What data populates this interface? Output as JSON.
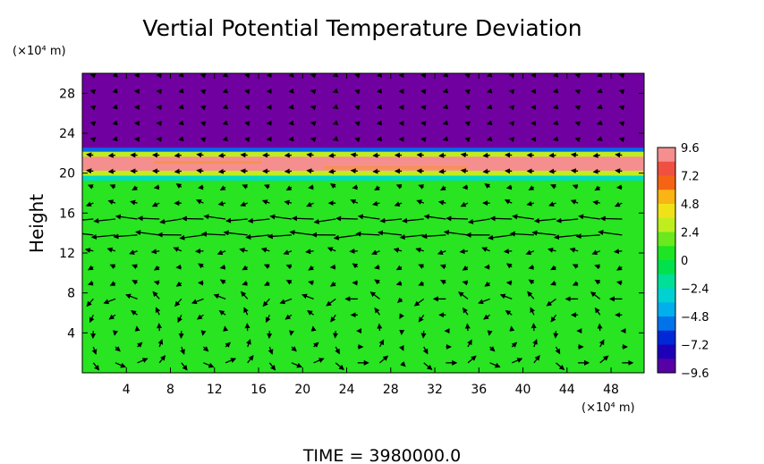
{
  "chart_data": {
    "type": "heatmap",
    "title": "Vertial Potential Temperature Deviation",
    "ylabel": "Height",
    "y_unit": "(×10⁴ m)",
    "x_unit": "(×10⁴ m)",
    "x_range": [
      0,
      51
    ],
    "y_range": [
      0,
      30
    ],
    "x_ticks": [
      4,
      8,
      12,
      16,
      20,
      24,
      28,
      32,
      36,
      40,
      44,
      48
    ],
    "y_ticks": [
      4,
      8,
      12,
      16,
      20,
      24,
      28
    ],
    "colorbar": {
      "range": [
        -9.6,
        9.6
      ],
      "ticks": [
        "9.6",
        "7.2",
        "4.8",
        "2.4",
        "0",
        "-2.4",
        "-4.8",
        "-7.2",
        "-9.6"
      ]
    },
    "bands": [
      {
        "from": 0,
        "to": 19.3,
        "value": 0.8
      },
      {
        "from": 19.3,
        "to": 19.8,
        "value": -2.4
      },
      {
        "from": 19.8,
        "to": 20.3,
        "value": 3.0
      },
      {
        "from": 20.3,
        "to": 21.7,
        "value": 9.0
      },
      {
        "from": 21.7,
        "to": 22.2,
        "value": 3.0
      },
      {
        "from": 22.2,
        "to": 22.6,
        "value": -5.5
      },
      {
        "from": 22.6,
        "to": 30,
        "value": -9.6
      }
    ],
    "circulation_cells_x": [
      4,
      12,
      20,
      25,
      33,
      38,
      45,
      49
    ],
    "jet_height": 14.5,
    "footer": "TIME  =  3980000.0"
  }
}
